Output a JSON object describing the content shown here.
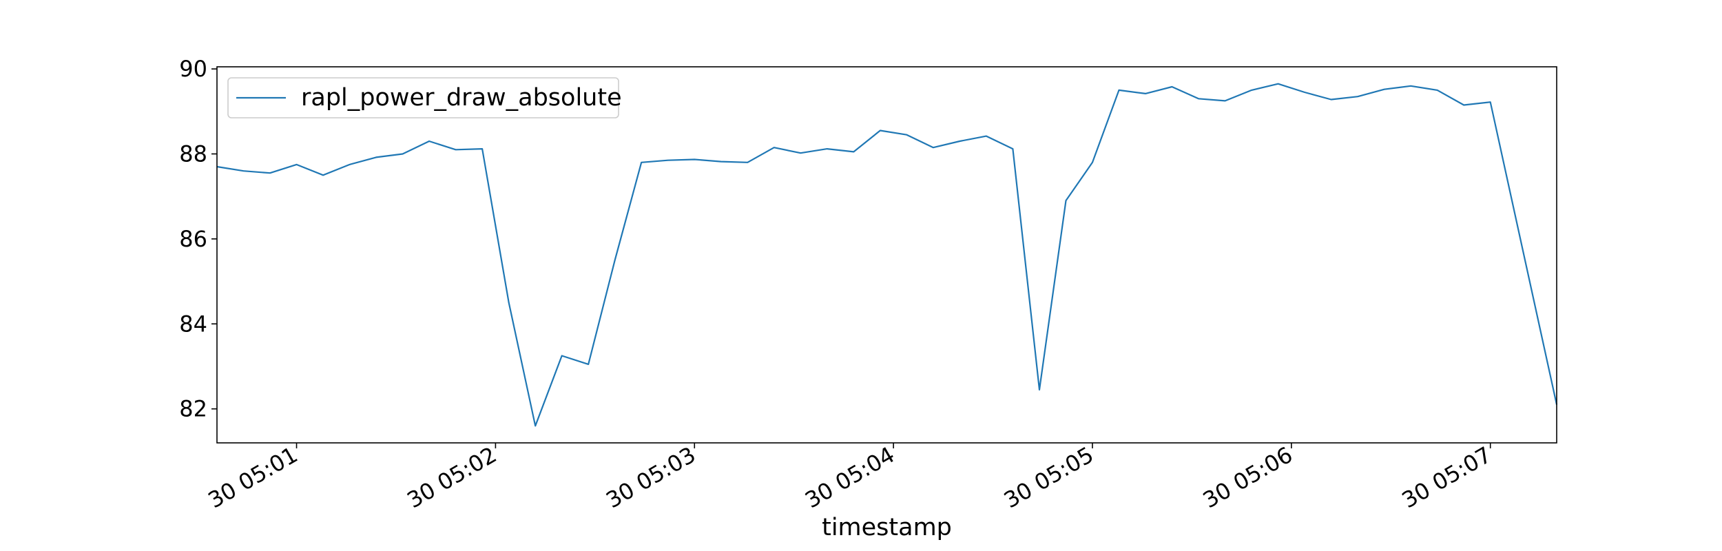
{
  "chart_data": {
    "type": "line",
    "title": "",
    "xlabel": "timestamp",
    "ylabel": "",
    "xlim": [
      "30 05:00:36",
      "30 05:07:20"
    ],
    "ylim": [
      81.2,
      90.05
    ],
    "x_ticks": [
      "30 05:01",
      "30 05:02",
      "30 05:03",
      "30 05:04",
      "30 05:05",
      "30 05:06",
      "30 05:07"
    ],
    "y_ticks": [
      "82",
      "84",
      "86",
      "88",
      "90"
    ],
    "grid": false,
    "legend_position": "upper-left",
    "series": [
      {
        "name": "rapl_power_draw_absolute",
        "color": "#1f77b4",
        "points": [
          [
            "30 05:00:36",
            87.7
          ],
          [
            "30 05:00:44",
            87.6
          ],
          [
            "30 05:00:52",
            87.55
          ],
          [
            "30 05:01:00",
            87.75
          ],
          [
            "30 05:01:08",
            87.5
          ],
          [
            "30 05:01:16",
            87.75
          ],
          [
            "30 05:01:24",
            87.92
          ],
          [
            "30 05:01:32",
            88.0
          ],
          [
            "30 05:01:40",
            88.3
          ],
          [
            "30 05:01:48",
            88.1
          ],
          [
            "30 05:01:56",
            88.12
          ],
          [
            "30 05:02:04",
            84.5
          ],
          [
            "30 05:02:12",
            81.6
          ],
          [
            "30 05:02:20",
            83.25
          ],
          [
            "30 05:02:28",
            83.05
          ],
          [
            "30 05:02:36",
            85.5
          ],
          [
            "30 05:02:44",
            87.8
          ],
          [
            "30 05:02:52",
            87.85
          ],
          [
            "30 05:03:00",
            87.87
          ],
          [
            "30 05:03:08",
            87.82
          ],
          [
            "30 05:03:16",
            87.8
          ],
          [
            "30 05:03:24",
            88.15
          ],
          [
            "30 05:03:32",
            88.02
          ],
          [
            "30 05:03:40",
            88.12
          ],
          [
            "30 05:03:48",
            88.05
          ],
          [
            "30 05:03:56",
            88.55
          ],
          [
            "30 05:04:04",
            88.45
          ],
          [
            "30 05:04:12",
            88.15
          ],
          [
            "30 05:04:20",
            88.3
          ],
          [
            "30 05:04:28",
            88.42
          ],
          [
            "30 05:04:36",
            88.12
          ],
          [
            "30 05:04:44",
            82.45
          ],
          [
            "30 05:04:52",
            86.9
          ],
          [
            "30 05:05:00",
            87.8
          ],
          [
            "30 05:05:08",
            89.5
          ],
          [
            "30 05:05:16",
            89.42
          ],
          [
            "30 05:05:24",
            89.58
          ],
          [
            "30 05:05:32",
            89.3
          ],
          [
            "30 05:05:40",
            89.25
          ],
          [
            "30 05:05:48",
            89.5
          ],
          [
            "30 05:05:56",
            89.65
          ],
          [
            "30 05:06:04",
            89.45
          ],
          [
            "30 05:06:12",
            89.28
          ],
          [
            "30 05:06:20",
            89.35
          ],
          [
            "30 05:06:28",
            89.52
          ],
          [
            "30 05:06:36",
            89.6
          ],
          [
            "30 05:06:44",
            89.5
          ],
          [
            "30 05:06:52",
            89.15
          ],
          [
            "30 05:07:00",
            89.22
          ],
          [
            "30 05:07:20",
            82.1
          ]
        ]
      }
    ]
  }
}
